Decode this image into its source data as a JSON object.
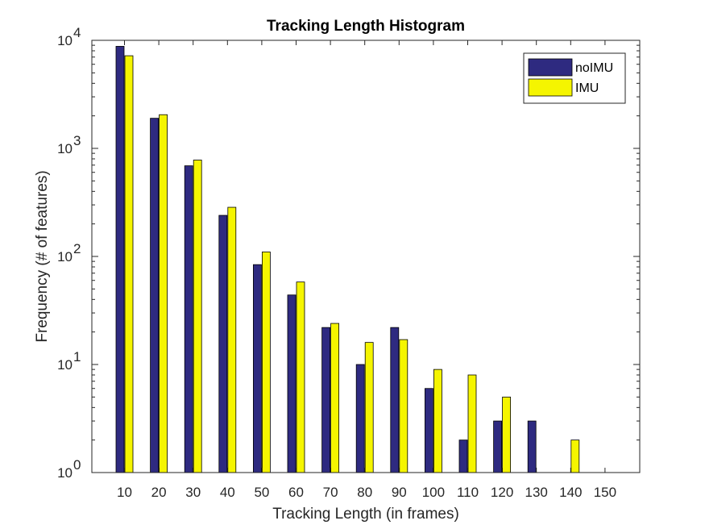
{
  "chart_data": {
    "type": "bar",
    "title": "Tracking Length Histogram",
    "xlabel": "Tracking Length (in frames)",
    "ylabel": "Frequency (# of features)",
    "yscale": "log",
    "ylim": [
      1,
      10000
    ],
    "yticks": [
      {
        "value": 1,
        "base": "10",
        "exp": "0"
      },
      {
        "value": 10,
        "base": "10",
        "exp": "1"
      },
      {
        "value": 100,
        "base": "10",
        "exp": "2"
      },
      {
        "value": 1000,
        "base": "10",
        "exp": "3"
      },
      {
        "value": 10000,
        "base": "10",
        "exp": "4"
      }
    ],
    "categories": [
      "10",
      "20",
      "30",
      "40",
      "50",
      "60",
      "70",
      "80",
      "90",
      "100",
      "110",
      "120",
      "130",
      "140",
      "150"
    ],
    "series": [
      {
        "name": "noIMU",
        "color": "#2e2a80",
        "values": [
          8800,
          1900,
          690,
          240,
          84,
          44,
          22,
          10,
          22,
          6,
          2,
          3,
          3,
          null,
          null
        ]
      },
      {
        "name": "IMU",
        "color": "#f5f500",
        "values": [
          7200,
          2050,
          780,
          285,
          110,
          58,
          24,
          16,
          17,
          9,
          8,
          5,
          null,
          2,
          null
        ]
      }
    ],
    "legend_position": "top-right",
    "grid": false
  }
}
